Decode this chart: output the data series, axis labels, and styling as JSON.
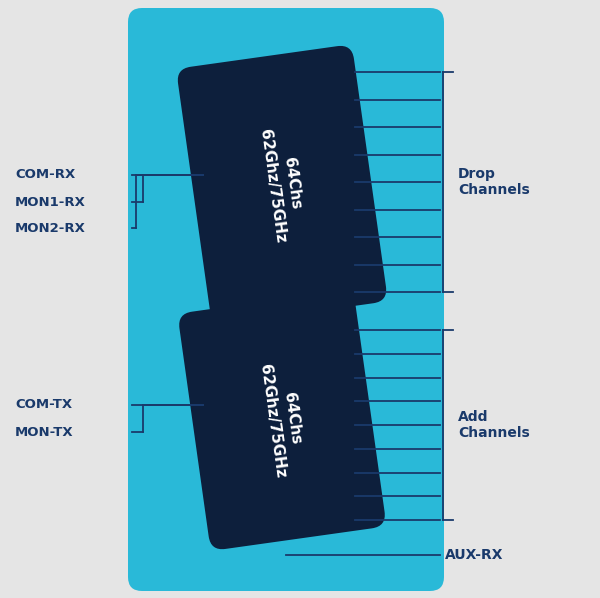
{
  "bg_color": "#e5e5e5",
  "panel_color": "#29b9d8",
  "module_color": "#0d1f3c",
  "line_color": "#1a3a6b",
  "text_color_white": "#ffffff",
  "text_color_dark": "#1a3a6b",
  "top_module_label": "64Chs\n62Ghz/75GHz",
  "bot_module_label": "64Chs\n62Ghz/75GHz",
  "left_labels_top": [
    "COM-RX",
    "MON1-RX",
    "MON2-RX"
  ],
  "left_labels_bot": [
    "COM-TX",
    "MON-TX"
  ],
  "right_label_top": [
    "Drop\nChannels"
  ],
  "right_label_bot": [
    "Add\nChannels"
  ],
  "bottom_label": "AUX-RX",
  "drop_lines_count": 9,
  "add_lines_count": 9
}
